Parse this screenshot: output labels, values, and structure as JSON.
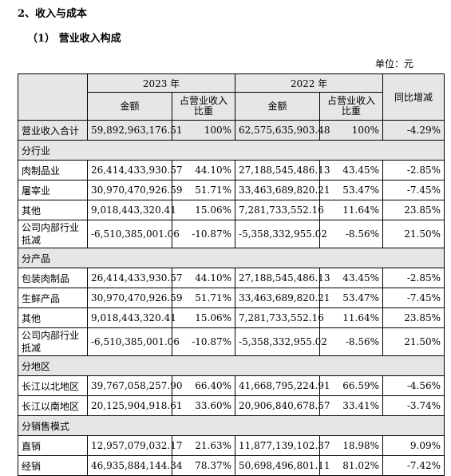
{
  "section_title": "2、收入与成本",
  "subsection_title": "（1） 营业收入构成",
  "unit_label": "单位：元",
  "headers": {
    "year_a": "2023 年",
    "year_b": "2022 年",
    "amount": "金额",
    "share": "占营业收入比重",
    "yoy": "同比增减"
  },
  "total_row": [
    "营业收入合计",
    "59,892,963,176.51",
    "100%",
    "62,575,635,903.48",
    "100%",
    "-4.29%"
  ],
  "groups": [
    {
      "title": "分行业",
      "rows": [
        [
          "肉制品业",
          "26,414,433,930.57",
          "44.10%",
          "27,188,545,486.13",
          "43.45%",
          "-2.85%"
        ],
        [
          "屠宰业",
          "30,970,470,926.59",
          "51.71%",
          "33,463,689,820.21",
          "53.47%",
          "-7.45%"
        ],
        [
          "其他",
          "9,018,443,320.41",
          "15.06%",
          "7,281,733,552.16",
          "11.64%",
          "23.85%"
        ],
        [
          "公司内部行业抵减",
          "-6,510,385,001.06",
          "-10.87%",
          "-5,358,332,955.02",
          "-8.56%",
          "21.50%"
        ]
      ]
    },
    {
      "title": "分产品",
      "rows": [
        [
          "包装肉制品",
          "26,414,433,930.57",
          "44.10%",
          "27,188,545,486.13",
          "43.45%",
          "-2.85%"
        ],
        [
          "生鲜产品",
          "30,970,470,926.59",
          "51.71%",
          "33,463,689,820.21",
          "53.47%",
          "-7.45%"
        ],
        [
          "其他",
          "9,018,443,320.41",
          "15.06%",
          "7,281,733,552.16",
          "11.64%",
          "23.85%"
        ],
        [
          "公司内部行业抵减",
          "-6,510,385,001.06",
          "-10.87%",
          "-5,358,332,955.02",
          "-8.56%",
          "21.50%"
        ]
      ]
    },
    {
      "title": "分地区",
      "rows": [
        [
          "长江以北地区",
          "39,767,058,257.90",
          "66.40%",
          "41,668,795,224.91",
          "66.59%",
          "-4.56%"
        ],
        [
          "长江以南地区",
          "20,125,904,918.61",
          "33.60%",
          "20,906,840,678.57",
          "33.41%",
          "-3.74%"
        ]
      ]
    },
    {
      "title": "分销售模式",
      "rows": [
        [
          "直销",
          "12,957,079,032.17",
          "21.63%",
          "11,877,139,102.37",
          "18.98%",
          "9.09%"
        ],
        [
          "经销",
          "46,935,884,144.34",
          "78.37%",
          "50,698,496,801.11",
          "81.02%",
          "-7.42%"
        ]
      ]
    }
  ],
  "colors": {
    "shade": "#e6e6e6",
    "border": "#000000"
  }
}
